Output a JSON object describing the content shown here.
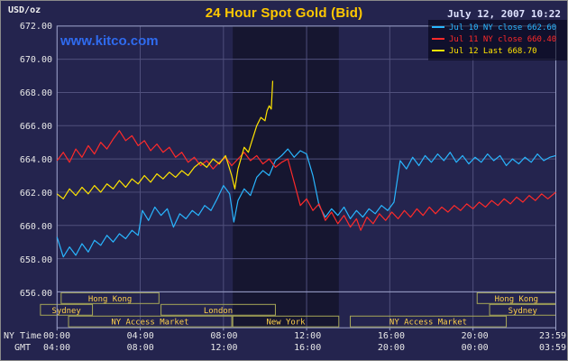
{
  "header": {
    "title": "24 Hour Spot Gold (Bid)",
    "datetime": "July 12, 2007 10:22",
    "unit": "USD/oz",
    "watermark": "www.kitco.com"
  },
  "colors": {
    "background": "#24244e",
    "band": "rgba(0,0,0,0.38)",
    "grid": "#50507c",
    "frame": "#9aa0c8",
    "axis_text": "#e8e8e8",
    "session_border": "#a8a858",
    "session_text": "#ffd24a",
    "title": "#ffc800",
    "watermark": "#2f6bef",
    "datetime": "#dfe3ff",
    "series_jul10": "#29b6ff",
    "series_jul11": "#ff2a2a",
    "series_jul12": "#ffe400"
  },
  "chart_data": {
    "type": "line",
    "title": "24 Hour Spot Gold (Bid)",
    "datetime": "July 12, 2007 10:22",
    "ylabel": "USD/oz",
    "grid": true,
    "legend_position": "top-right",
    "y_axis": {
      "unit": "USD/oz",
      "ylim": [
        656,
        672
      ],
      "step": 2,
      "ticks": [
        "672.00",
        "670.00",
        "668.00",
        "666.00",
        "664.00",
        "662.00",
        "660.00",
        "658.00",
        "656.00"
      ]
    },
    "x_axis": {
      "range_hours": [
        0,
        23.983
      ],
      "tick_hours": [
        0,
        4,
        8,
        12,
        16,
        20,
        23.983
      ],
      "label_rows": [
        {
          "name": "NY Time",
          "ticks": [
            "00:00",
            "04:00",
            "08:00",
            "12:00",
            "16:00",
            "20:00",
            "23:59"
          ]
        },
        {
          "name": "GMT",
          "ticks": [
            "04:00",
            "08:00",
            "12:00",
            "16:00",
            "20:00",
            "00:00",
            "03:59"
          ]
        }
      ]
    },
    "legend": [
      {
        "label": "Jul 10 NY close 662.60",
        "color": "#29b6ff"
      },
      {
        "label": "Jul 11 NY close 660.40",
        "color": "#ff2a2a"
      },
      {
        "label": "Jul 12 Last 668.70",
        "color": "#ffe400"
      }
    ],
    "highlight_band": {
      "from": 8.45,
      "to": 13.55
    },
    "sessions": [
      {
        "row": 0,
        "label": "Hong Kong",
        "from": 0.2,
        "to": 4.9
      },
      {
        "row": 0,
        "label": "Hong Kong",
        "from": 20.2,
        "to": 23.983
      },
      {
        "row": 1,
        "label": "Sydney",
        "from": -0.8,
        "to": 1.7
      },
      {
        "row": 1,
        "label": "London",
        "from": 5.0,
        "to": 10.5
      },
      {
        "row": 1,
        "label": "Sydney",
        "from": 20.8,
        "to": 23.983
      },
      {
        "row": 2,
        "label": "NY Access Market",
        "from": 0.55,
        "to": 8.4
      },
      {
        "row": 2,
        "label": "New York",
        "from": 8.45,
        "to": 13.55
      },
      {
        "row": 2,
        "label": "NY Access Market",
        "from": 14.1,
        "to": 21.6
      }
    ],
    "series": [
      {
        "name": "Jul 10",
        "close_label": "NY close 662.60",
        "color": "#29b6ff",
        "points": [
          [
            0,
            659.3
          ],
          [
            0.3,
            658.1
          ],
          [
            0.6,
            658.7
          ],
          [
            0.9,
            658.2
          ],
          [
            1.2,
            658.9
          ],
          [
            1.5,
            658.4
          ],
          [
            1.8,
            659.1
          ],
          [
            2.1,
            658.8
          ],
          [
            2.4,
            659.4
          ],
          [
            2.7,
            659.0
          ],
          [
            3.0,
            659.5
          ],
          [
            3.3,
            659.2
          ],
          [
            3.6,
            659.7
          ],
          [
            3.9,
            659.4
          ],
          [
            4.1,
            660.9
          ],
          [
            4.4,
            660.3
          ],
          [
            4.7,
            661.1
          ],
          [
            5.0,
            660.6
          ],
          [
            5.3,
            661.0
          ],
          [
            5.6,
            659.9
          ],
          [
            5.9,
            660.7
          ],
          [
            6.2,
            660.4
          ],
          [
            6.5,
            660.9
          ],
          [
            6.8,
            660.6
          ],
          [
            7.1,
            661.2
          ],
          [
            7.4,
            660.9
          ],
          [
            7.7,
            661.6
          ],
          [
            8.0,
            662.4
          ],
          [
            8.3,
            661.9
          ],
          [
            8.5,
            660.2
          ],
          [
            8.7,
            661.5
          ],
          [
            9.0,
            662.2
          ],
          [
            9.3,
            661.8
          ],
          [
            9.6,
            662.9
          ],
          [
            9.9,
            663.3
          ],
          [
            10.2,
            663.0
          ],
          [
            10.5,
            663.9
          ],
          [
            10.8,
            664.2
          ],
          [
            11.1,
            664.6
          ],
          [
            11.4,
            664.1
          ],
          [
            11.7,
            664.5
          ],
          [
            12.0,
            664.3
          ],
          [
            12.3,
            663.0
          ],
          [
            12.6,
            661.2
          ],
          [
            12.9,
            660.5
          ],
          [
            13.2,
            661.0
          ],
          [
            13.5,
            660.6
          ],
          [
            13.8,
            661.1
          ],
          [
            14.1,
            660.4
          ],
          [
            14.4,
            660.9
          ],
          [
            14.7,
            660.5
          ],
          [
            15.0,
            661.0
          ],
          [
            15.3,
            660.7
          ],
          [
            15.6,
            661.2
          ],
          [
            15.9,
            660.9
          ],
          [
            16.2,
            661.4
          ],
          [
            16.5,
            663.9
          ],
          [
            16.8,
            663.4
          ],
          [
            17.1,
            664.1
          ],
          [
            17.4,
            663.6
          ],
          [
            17.7,
            664.2
          ],
          [
            18.0,
            663.8
          ],
          [
            18.3,
            664.3
          ],
          [
            18.6,
            663.9
          ],
          [
            18.9,
            664.4
          ],
          [
            19.2,
            663.8
          ],
          [
            19.5,
            664.2
          ],
          [
            19.8,
            663.7
          ],
          [
            20.1,
            664.1
          ],
          [
            20.4,
            663.8
          ],
          [
            20.7,
            664.3
          ],
          [
            21.0,
            663.9
          ],
          [
            21.3,
            664.2
          ],
          [
            21.6,
            663.6
          ],
          [
            21.9,
            664.0
          ],
          [
            22.2,
            663.7
          ],
          [
            22.5,
            664.1
          ],
          [
            22.8,
            663.8
          ],
          [
            23.1,
            664.3
          ],
          [
            23.4,
            663.9
          ],
          [
            23.7,
            664.1
          ],
          [
            23.983,
            664.2
          ]
        ]
      },
      {
        "name": "Jul 11",
        "close_label": "NY close 660.40",
        "color": "#ff2a2a",
        "points": [
          [
            0,
            663.9
          ],
          [
            0.3,
            664.4
          ],
          [
            0.6,
            663.8
          ],
          [
            0.9,
            664.6
          ],
          [
            1.2,
            664.1
          ],
          [
            1.5,
            664.8
          ],
          [
            1.8,
            664.3
          ],
          [
            2.1,
            665.0
          ],
          [
            2.4,
            664.6
          ],
          [
            2.7,
            665.2
          ],
          [
            3.0,
            665.7
          ],
          [
            3.3,
            665.1
          ],
          [
            3.6,
            665.4
          ],
          [
            3.9,
            664.8
          ],
          [
            4.2,
            665.1
          ],
          [
            4.5,
            664.5
          ],
          [
            4.8,
            664.9
          ],
          [
            5.1,
            664.4
          ],
          [
            5.4,
            664.7
          ],
          [
            5.7,
            664.1
          ],
          [
            6.0,
            664.4
          ],
          [
            6.3,
            663.8
          ],
          [
            6.6,
            664.1
          ],
          [
            6.9,
            663.6
          ],
          [
            7.2,
            663.9
          ],
          [
            7.5,
            663.4
          ],
          [
            7.8,
            663.8
          ],
          [
            8.1,
            664.1
          ],
          [
            8.4,
            663.6
          ],
          [
            8.7,
            664.0
          ],
          [
            9.0,
            664.4
          ],
          [
            9.3,
            663.9
          ],
          [
            9.6,
            664.2
          ],
          [
            9.9,
            663.7
          ],
          [
            10.2,
            664.0
          ],
          [
            10.5,
            663.5
          ],
          [
            10.8,
            663.8
          ],
          [
            11.1,
            664.0
          ],
          [
            11.4,
            662.6
          ],
          [
            11.7,
            661.2
          ],
          [
            12.0,
            661.6
          ],
          [
            12.3,
            660.9
          ],
          [
            12.6,
            661.3
          ],
          [
            12.9,
            660.3
          ],
          [
            13.2,
            660.8
          ],
          [
            13.5,
            660.1
          ],
          [
            13.8,
            660.6
          ],
          [
            14.1,
            659.9
          ],
          [
            14.4,
            660.4
          ],
          [
            14.6,
            659.7
          ],
          [
            14.9,
            660.5
          ],
          [
            15.2,
            660.1
          ],
          [
            15.5,
            660.7
          ],
          [
            15.8,
            660.3
          ],
          [
            16.1,
            660.8
          ],
          [
            16.4,
            660.4
          ],
          [
            16.7,
            660.9
          ],
          [
            17.0,
            660.5
          ],
          [
            17.3,
            661.0
          ],
          [
            17.6,
            660.6
          ],
          [
            17.9,
            661.1
          ],
          [
            18.2,
            660.7
          ],
          [
            18.5,
            661.1
          ],
          [
            18.8,
            660.8
          ],
          [
            19.1,
            661.2
          ],
          [
            19.4,
            660.9
          ],
          [
            19.7,
            661.3
          ],
          [
            20.0,
            661.0
          ],
          [
            20.3,
            661.4
          ],
          [
            20.6,
            661.1
          ],
          [
            20.9,
            661.5
          ],
          [
            21.2,
            661.2
          ],
          [
            21.5,
            661.6
          ],
          [
            21.8,
            661.3
          ],
          [
            22.1,
            661.7
          ],
          [
            22.4,
            661.4
          ],
          [
            22.7,
            661.8
          ],
          [
            23.0,
            661.5
          ],
          [
            23.3,
            661.9
          ],
          [
            23.6,
            661.6
          ],
          [
            23.983,
            662.0
          ]
        ]
      },
      {
        "name": "Jul 12",
        "close_label": "Last 668.70",
        "color": "#ffe400",
        "points": [
          [
            0,
            661.9
          ],
          [
            0.3,
            661.6
          ],
          [
            0.6,
            662.2
          ],
          [
            0.9,
            661.8
          ],
          [
            1.2,
            662.3
          ],
          [
            1.5,
            661.9
          ],
          [
            1.8,
            662.4
          ],
          [
            2.1,
            662.0
          ],
          [
            2.4,
            662.5
          ],
          [
            2.7,
            662.2
          ],
          [
            3.0,
            662.7
          ],
          [
            3.3,
            662.3
          ],
          [
            3.6,
            662.8
          ],
          [
            3.9,
            662.5
          ],
          [
            4.2,
            663.0
          ],
          [
            4.5,
            662.6
          ],
          [
            4.8,
            663.1
          ],
          [
            5.1,
            662.8
          ],
          [
            5.4,
            663.2
          ],
          [
            5.7,
            662.9
          ],
          [
            6.0,
            663.3
          ],
          [
            6.3,
            663.0
          ],
          [
            6.6,
            663.5
          ],
          [
            6.9,
            663.8
          ],
          [
            7.2,
            663.5
          ],
          [
            7.5,
            664.0
          ],
          [
            7.8,
            663.7
          ],
          [
            8.1,
            664.2
          ],
          [
            8.4,
            663.0
          ],
          [
            8.55,
            662.2
          ],
          [
            8.7,
            663.4
          ],
          [
            9.0,
            664.7
          ],
          [
            9.2,
            664.4
          ],
          [
            9.4,
            665.2
          ],
          [
            9.6,
            666.0
          ],
          [
            9.8,
            666.5
          ],
          [
            10.0,
            666.3
          ],
          [
            10.1,
            666.9
          ],
          [
            10.2,
            667.2
          ],
          [
            10.3,
            667.0
          ],
          [
            10.37,
            668.7
          ]
        ]
      }
    ]
  }
}
